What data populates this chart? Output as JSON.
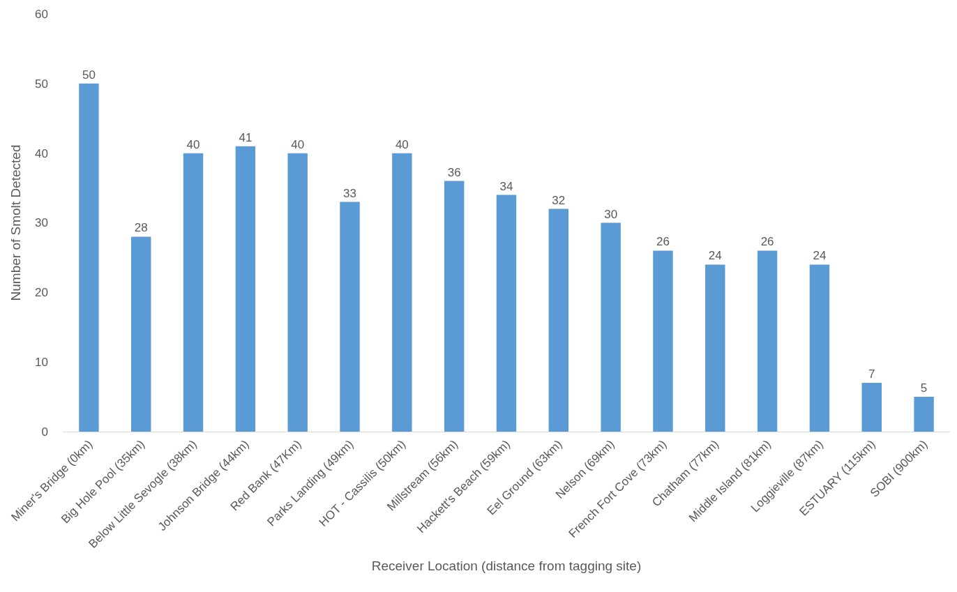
{
  "chart_data": {
    "type": "bar",
    "xlabel": "Receiver Location (distance from tagging site)",
    "ylabel": "Number of Smolt Detected",
    "categories": [
      "Miner's Bridge (0km)",
      "Big Hole Pool (35km)",
      "Below Little Sevogle (38km)",
      "Johnson Bridge (44km)",
      "Red Bank (47Km)",
      "Parks Landing (49km)",
      "HOT - Cassilis (50km)",
      "Millstream (56km)",
      "Hackett's Beach (59km)",
      "Eel Ground (63km)",
      "Nelson (69km)",
      "French Fort Cove (73km)",
      "Chatham (77km)",
      "Middle Island (81km)",
      "Loggieville (87km)",
      "ESTUARY (115km)",
      "SOBI (900km)"
    ],
    "values": [
      50,
      28,
      40,
      41,
      40,
      33,
      40,
      36,
      34,
      32,
      30,
      26,
      24,
      26,
      24,
      7,
      5
    ],
    "color": "#5b9bd5",
    "ylim": [
      0,
      60
    ],
    "yticks": [
      0,
      10,
      20,
      30,
      40,
      50,
      60
    ],
    "grid": false,
    "data_labels": true,
    "legend": false
  }
}
